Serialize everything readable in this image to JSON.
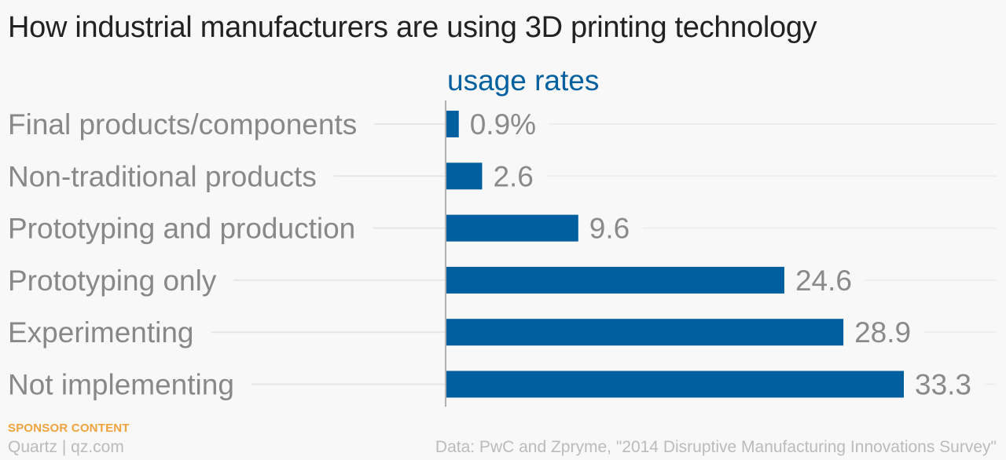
{
  "title": "How industrial manufacturers are using 3D printing technology",
  "colors": {
    "bar": "#005f9e",
    "series_label": "#005f9e",
    "category_label": "#888888",
    "value_label": "#8a8a8a",
    "sponsor": "#f0a23c",
    "footer": "#bbbbbb",
    "background": "#f8f8f8"
  },
  "chart_data": {
    "type": "bar",
    "orientation": "horizontal",
    "categories": [
      "Final products/components",
      "Non-traditional products",
      "Prototyping and production",
      "Prototyping only",
      "Experimenting",
      "Not implementing"
    ],
    "series": [
      {
        "name": "usage rates",
        "values": [
          0.9,
          2.6,
          9.6,
          24.6,
          28.9,
          33.3
        ]
      }
    ],
    "value_labels": [
      "0.9%",
      "2.6",
      "9.6",
      "24.6",
      "28.9",
      "33.3"
    ],
    "xlim": [
      0,
      33.3
    ],
    "grid": false,
    "legend": "none"
  },
  "footer": {
    "sponsor": "SPONSOR CONTENT",
    "brand": "Quartz | qz.com",
    "source": "Data: PwC and Zpryme, \"2014 Disruptive Manufacturing Innovations Survey\""
  }
}
